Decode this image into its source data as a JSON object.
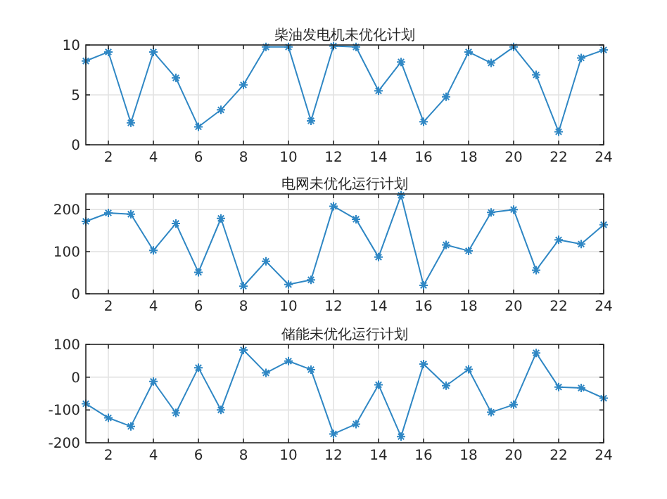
{
  "chart_data": [
    {
      "type": "line",
      "title": "柴油发电机未优化计划",
      "x": [
        1,
        2,
        3,
        4,
        5,
        6,
        7,
        8,
        9,
        10,
        11,
        12,
        13,
        14,
        15,
        16,
        17,
        18,
        19,
        20,
        21,
        22,
        23,
        24
      ],
      "series": [
        {
          "color": "#2f87c4",
          "values": [
            8.4,
            9.3,
            2.2,
            9.3,
            6.7,
            1.8,
            3.5,
            6.0,
            9.8,
            9.8,
            2.4,
            9.9,
            9.8,
            5.4,
            8.3,
            2.3,
            4.8,
            9.3,
            8.2,
            9.8,
            7.0,
            1.3,
            8.7,
            9.5
          ]
        }
      ],
      "xlim": [
        1,
        24
      ],
      "xticks": [
        2,
        4,
        6,
        8,
        10,
        12,
        14,
        16,
        18,
        20,
        22,
        24
      ],
      "ylim": [
        0,
        10
      ],
      "yticks": [
        0,
        5,
        10
      ],
      "grid": true,
      "marker": "cross",
      "line_style": "solid"
    },
    {
      "type": "line",
      "title": "电网未优化运行计划",
      "x": [
        1,
        2,
        3,
        4,
        5,
        6,
        7,
        8,
        9,
        10,
        11,
        12,
        13,
        14,
        15,
        16,
        17,
        18,
        19,
        20,
        21,
        22,
        23,
        24
      ],
      "series": [
        {
          "color": "#2f87c4",
          "values": [
            172,
            192,
            189,
            103,
            167,
            51,
            179,
            18,
            77,
            22,
            33,
            208,
            177,
            87,
            234,
            20,
            116,
            102,
            193,
            200,
            56,
            128,
            118,
            164
          ]
        }
      ],
      "xlim": [
        1,
        24
      ],
      "xticks": [
        2,
        4,
        6,
        8,
        10,
        12,
        14,
        16,
        18,
        20,
        22,
        24
      ],
      "ylim": [
        0,
        237
      ],
      "yticks": [
        0,
        100,
        200
      ],
      "grid": true,
      "marker": "cross",
      "line_style": "solid"
    },
    {
      "type": "line",
      "title": "储能未优化运行计划",
      "x": [
        1,
        2,
        3,
        4,
        5,
        6,
        7,
        8,
        9,
        10,
        11,
        12,
        13,
        14,
        15,
        16,
        17,
        18,
        19,
        20,
        21,
        22,
        23,
        24
      ],
      "series": [
        {
          "color": "#2f87c4",
          "values": [
            -81,
            -124,
            -150,
            -13,
            -109,
            29,
            -100,
            83,
            13,
            49,
            23,
            -173,
            -143,
            -23,
            -181,
            40,
            -26,
            24,
            -107,
            -84,
            74,
            -30,
            -33,
            -64
          ]
        }
      ],
      "xlim": [
        1,
        24
      ],
      "xticks": [
        2,
        4,
        6,
        8,
        10,
        12,
        14,
        16,
        18,
        20,
        22,
        24
      ],
      "ylim": [
        -200,
        100
      ],
      "yticks": [
        -200,
        -100,
        0,
        100
      ],
      "grid": true,
      "marker": "cross",
      "line_style": "solid"
    }
  ]
}
